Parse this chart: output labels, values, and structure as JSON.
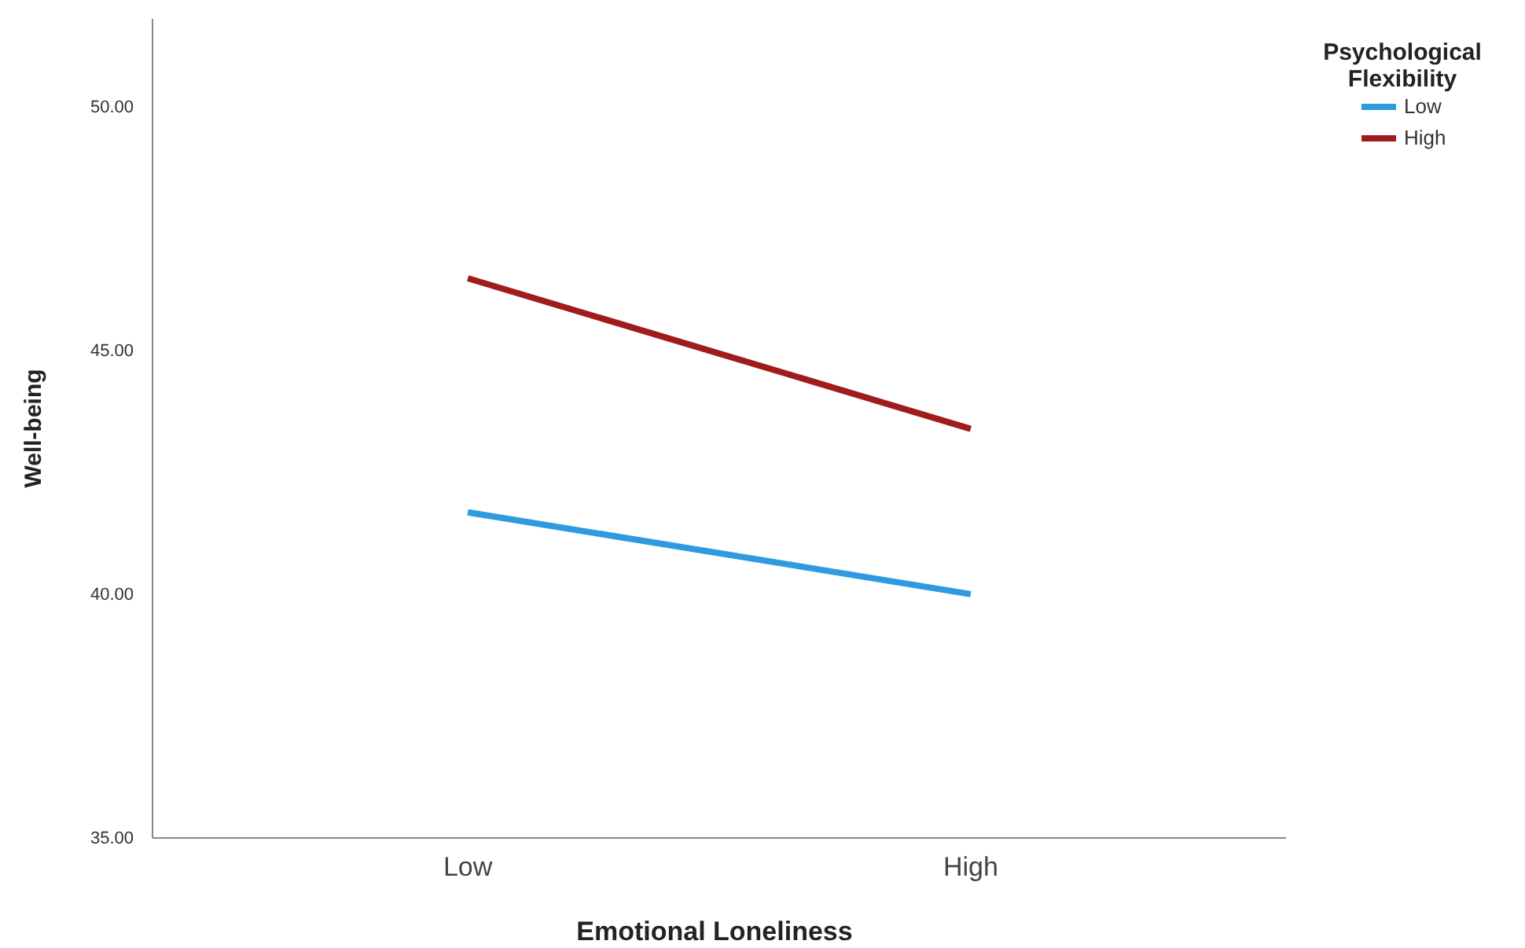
{
  "chart_data": {
    "type": "line",
    "xlabel": "Emotional Loneliness",
    "ylabel": "Well-being",
    "legend_title": "Psychological Flexibility",
    "categories": [
      "Low",
      "High"
    ],
    "series": [
      {
        "name": "Low",
        "color": "#2e9be0",
        "values": [
          41.68,
          40.0
        ]
      },
      {
        "name": "High",
        "color": "#a01c1c",
        "values": [
          46.48,
          43.39
        ]
      }
    ],
    "ylim": [
      35,
      51.8
    ],
    "yticks": [
      {
        "value": 35,
        "label": "35.00"
      },
      {
        "value": 40,
        "label": "40.00"
      },
      {
        "value": 45,
        "label": "45.00"
      },
      {
        "value": 50,
        "label": "50.00"
      }
    ],
    "grid": false,
    "legend": "top right",
    "marker": "none",
    "line_style": "solid"
  }
}
